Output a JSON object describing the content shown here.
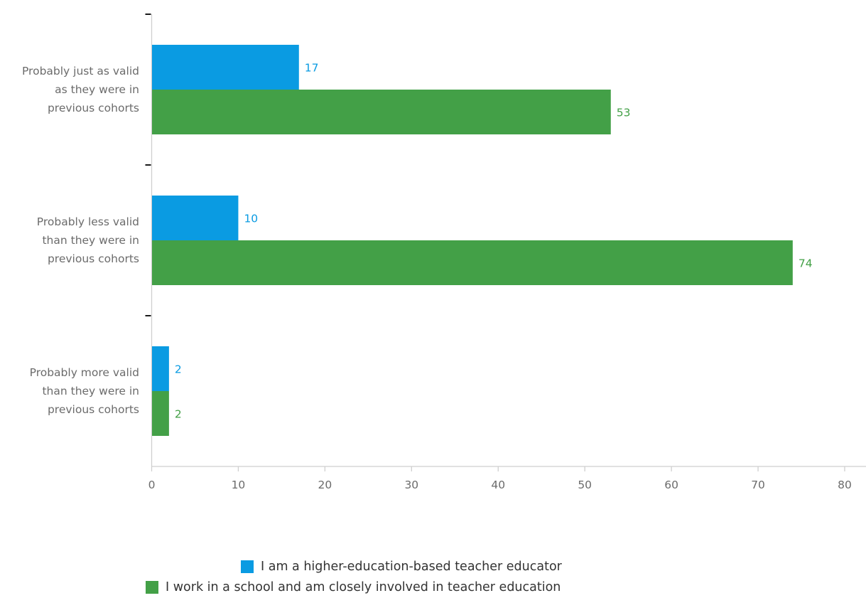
{
  "chart_data": {
    "type": "bar",
    "orientation": "horizontal",
    "categories": [
      [
        "Probably just as valid",
        "as they were in",
        "previous cohorts"
      ],
      [
        "Probably less valid",
        "than they were in",
        "previous cohorts"
      ],
      [
        "Probably more valid",
        "than they were in",
        "previous cohorts"
      ]
    ],
    "series": [
      {
        "name": "I am a higher-education-based teacher educator",
        "color": "#0a9be2",
        "values": [
          17,
          10,
          2
        ]
      },
      {
        "name": "I work in a school and am closely involved in teacher education",
        "color": "#43a047",
        "values": [
          53,
          74,
          2
        ]
      }
    ],
    "xlim": [
      0,
      80
    ],
    "xticks": [
      0,
      10,
      20,
      30,
      40,
      50,
      60,
      70,
      80
    ],
    "data_labels": true,
    "grid": false,
    "legend_position": "bottom"
  }
}
